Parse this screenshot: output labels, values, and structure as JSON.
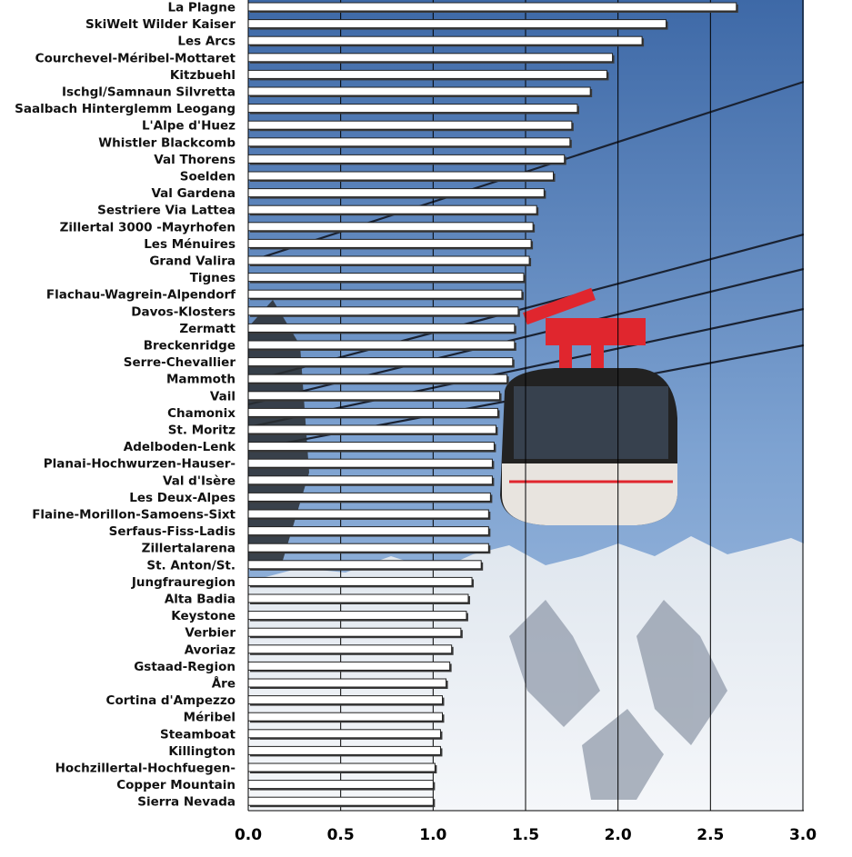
{
  "chart_data": {
    "type": "bar",
    "orientation": "horizontal",
    "categories": [
      "La Plagne",
      "SkiWelt Wilder Kaiser",
      "Les Arcs",
      "Courchevel-Méribel-Mottaret",
      "Kitzbuehl",
      "Ischgl/Samnaun Silvretta",
      "Saalbach Hinterglemm Leogang",
      "L'Alpe d'Huez",
      "Whistler Blackcomb",
      "Val Thorens",
      "Soelden",
      "Val Gardena",
      "Sestriere Via Lattea",
      "Zillertal 3000 -Mayrhofen",
      "Les Ménuires",
      "Grand Valira",
      "Tignes",
      "Flachau-Wagrein-Alpendorf",
      "Davos-Klosters",
      "Zermatt",
      "Breckenridge",
      "Serre-Chevallier",
      "Mammoth",
      "Vail",
      "Chamonix",
      "St. Moritz",
      "Adelboden-Lenk",
      "Planai-Hochwurzen-Hauser-",
      "Val d'Isère",
      "Les Deux-Alpes",
      "Flaine-Morillon-Samoens-Sixt",
      "Serfaus-Fiss-Ladis",
      "Zillertalarena",
      "St. Anton/St.",
      "Jungfrauregion",
      "Alta Badia",
      "Keystone",
      "Verbier",
      "Avoriaz",
      "Gstaad-Region",
      "Åre",
      "Cortina d'Ampezzo",
      "Méribel",
      "Steamboat",
      "Killington",
      "Hochzillertal-Hochfuegen-",
      "Copper Mountain",
      "Sierra Nevada"
    ],
    "values": [
      2.64,
      2.26,
      2.13,
      1.97,
      1.94,
      1.85,
      1.78,
      1.75,
      1.74,
      1.71,
      1.65,
      1.6,
      1.56,
      1.54,
      1.53,
      1.52,
      1.49,
      1.48,
      1.46,
      1.44,
      1.44,
      1.43,
      1.4,
      1.36,
      1.35,
      1.34,
      1.33,
      1.32,
      1.32,
      1.31,
      1.3,
      1.3,
      1.3,
      1.26,
      1.21,
      1.19,
      1.18,
      1.15,
      1.1,
      1.09,
      1.07,
      1.05,
      1.05,
      1.04,
      1.04,
      1.01,
      1.0,
      1.0
    ],
    "xlim": [
      0,
      3.0
    ],
    "x_ticks": [
      "0.0",
      "0.5",
      "1.0",
      "1.5",
      "2.0",
      "2.5",
      "3.0"
    ],
    "x_tick_values": [
      0,
      0.5,
      1.0,
      1.5,
      2.0,
      2.5,
      3.0
    ],
    "gridlines": "vertical",
    "title": "",
    "xlabel": "",
    "ylabel": "",
    "colors": {
      "bar_fill": "#ffffff",
      "bar_shadow": "#3a3a3a",
      "bar_stroke": "#222222",
      "grid": "#000000",
      "sky_top": "#3f6aa8",
      "sky_bottom": "#8fb0d8",
      "snow": "#eef2f6",
      "gondola_red": "#e0262e"
    },
    "background_image": "cable-car gondola over snowy mountains"
  }
}
